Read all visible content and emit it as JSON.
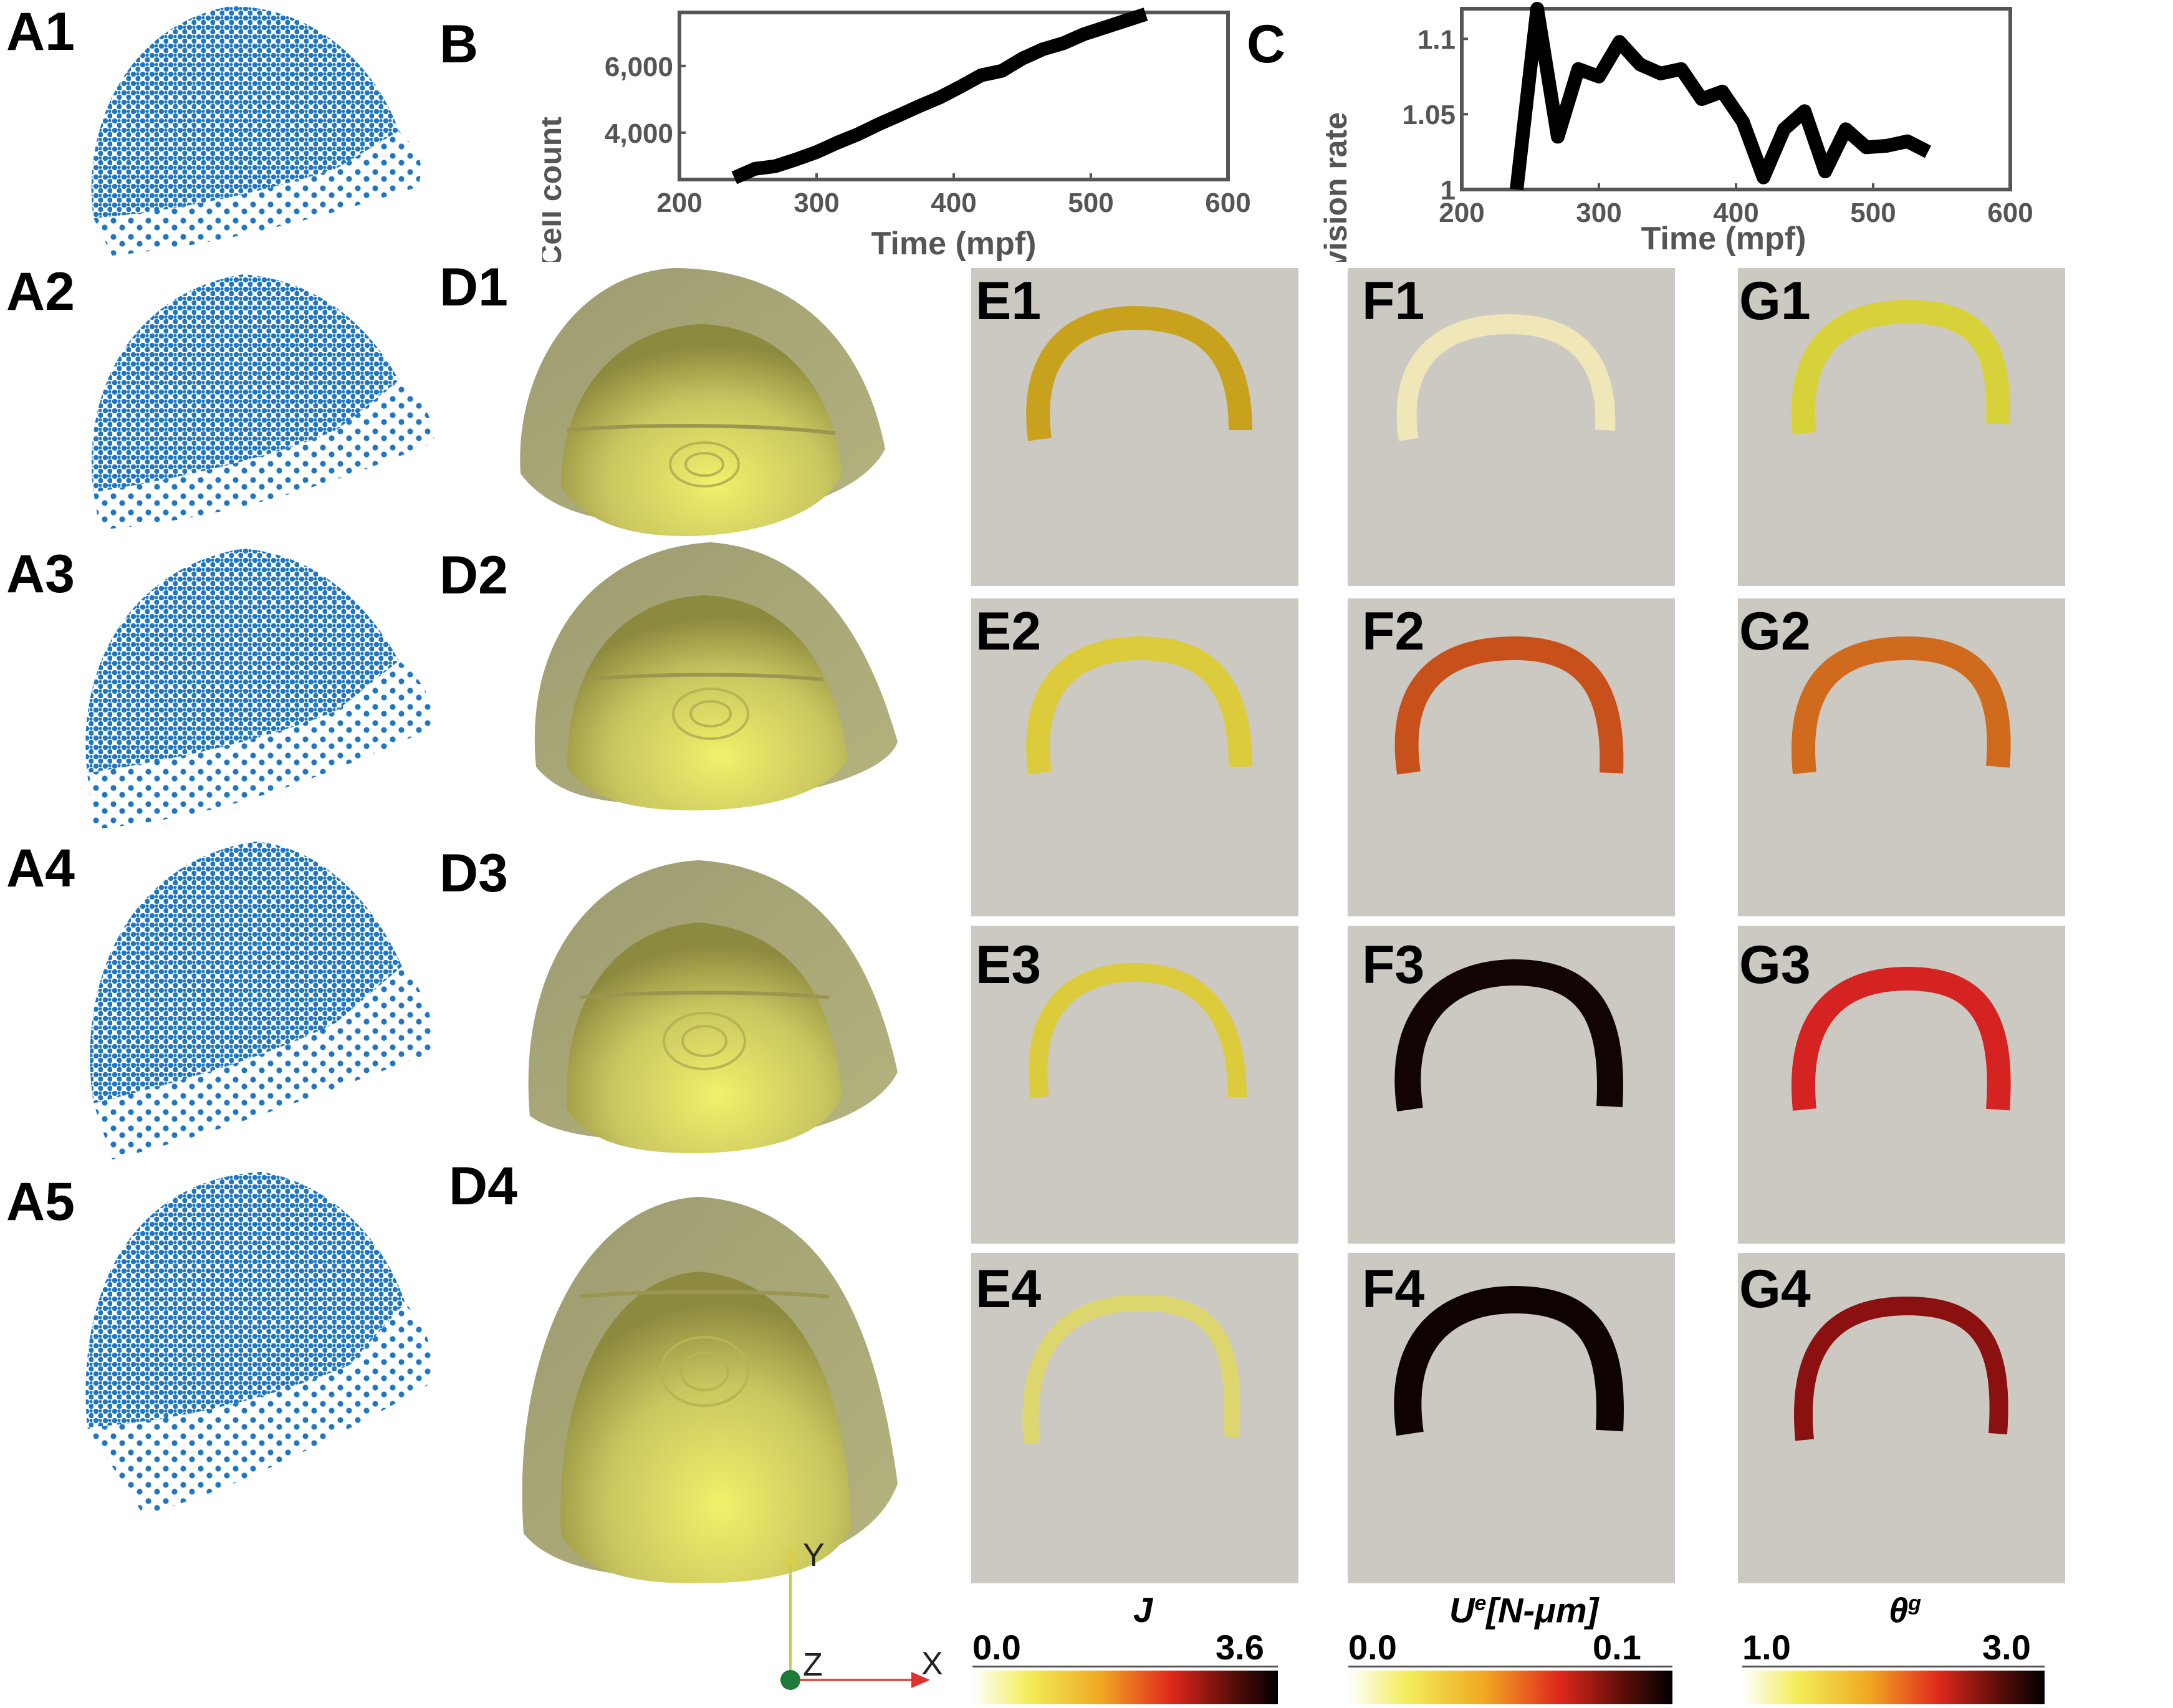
{
  "panel_labels": {
    "A1": "A1",
    "A2": "A2",
    "A3": "A3",
    "A4": "A4",
    "A5": "A5",
    "B": "B",
    "C": "C",
    "D1": "D1",
    "D2": "D2",
    "D3": "D3",
    "D4": "D4",
    "E1": "E1",
    "E2": "E2",
    "E3": "E3",
    "E4": "E4",
    "F1": "F1",
    "F2": "F2",
    "F3": "F3",
    "F4": "F4",
    "G1": "G1",
    "G2": "G2",
    "G3": "G3",
    "G4": "G4"
  },
  "chart_data": [
    {
      "id": "B",
      "type": "line",
      "xlabel": "Time (mpf)",
      "ylabel": "Cell count",
      "xlim": [
        200,
        600
      ],
      "ylim": [
        2600,
        7600
      ],
      "xticks": [
        200,
        300,
        400,
        500,
        600
      ],
      "xtick_labels": [
        "200",
        "300",
        "400",
        "500",
        "600"
      ],
      "yticks": [
        4000,
        6000
      ],
      "ytick_labels": [
        "4,000",
        "6,000"
      ],
      "x": [
        240,
        255,
        270,
        285,
        300,
        315,
        330,
        345,
        360,
        375,
        390,
        405,
        420,
        435,
        450,
        465,
        480,
        495,
        510,
        525,
        540
      ],
      "y": [
        2650,
        2920,
        3000,
        3200,
        3420,
        3700,
        3950,
        4250,
        4520,
        4800,
        5060,
        5380,
        5720,
        5850,
        6220,
        6500,
        6680,
        6950,
        7150,
        7350,
        7550
      ],
      "line_color": "#000000"
    },
    {
      "id": "C",
      "type": "line",
      "xlabel": "Time (mpf)",
      "ylabel": "Division rate",
      "xlim": [
        200,
        600
      ],
      "ylim": [
        1,
        1.12
      ],
      "xticks": [
        200,
        300,
        400,
        500,
        600
      ],
      "xtick_labels": [
        "200",
        "300",
        "400",
        "500",
        "600"
      ],
      "yticks": [
        1,
        1.05,
        1.1
      ],
      "ytick_labels": [
        "1",
        "1.05",
        "1.1"
      ],
      "x": [
        240,
        255,
        270,
        285,
        300,
        315,
        330,
        345,
        360,
        375,
        390,
        405,
        420,
        435,
        450,
        465,
        480,
        495,
        510,
        525,
        540
      ],
      "y": [
        1.0,
        1.12,
        1.035,
        1.08,
        1.075,
        1.098,
        1.083,
        1.077,
        1.08,
        1.06,
        1.065,
        1.045,
        1.008,
        1.04,
        1.052,
        1.012,
        1.04,
        1.028,
        1.029,
        1.032,
        1.025
      ],
      "line_color": "#000000"
    }
  ],
  "colorbars": {
    "E": {
      "title": "J",
      "min_label": "0.0",
      "max_label": "3.6",
      "min": 0.0,
      "max": 3.6
    },
    "F": {
      "title": "U",
      "title_sup": "e",
      "title_rest": "[N-μm]",
      "min_label": "0.0",
      "max_label": "0.1",
      "min": 0.0,
      "max": 0.1
    },
    "G": {
      "title": "θ",
      "title_sup": "g",
      "min_label": "1.0",
      "max_label": "3.0",
      "min": 1.0,
      "max": 3.0
    }
  },
  "triad": {
    "y": "Y",
    "z": "Z",
    "x": "X"
  },
  "colors": {
    "scatter": "#1f77c4",
    "panel_bg": "#cbc9c2",
    "E1": "#c9a21d",
    "E2": "#dccb3a",
    "E3": "#dccb3a",
    "E4": "#ddd56e",
    "F1": "#efe7b8",
    "F2": "#c8501a",
    "F3": "#120402",
    "F4": "#0f0202",
    "G1": "#d8d23a",
    "G2": "#d06a1c",
    "G3": "#d42320",
    "G4": "#8b1010"
  }
}
